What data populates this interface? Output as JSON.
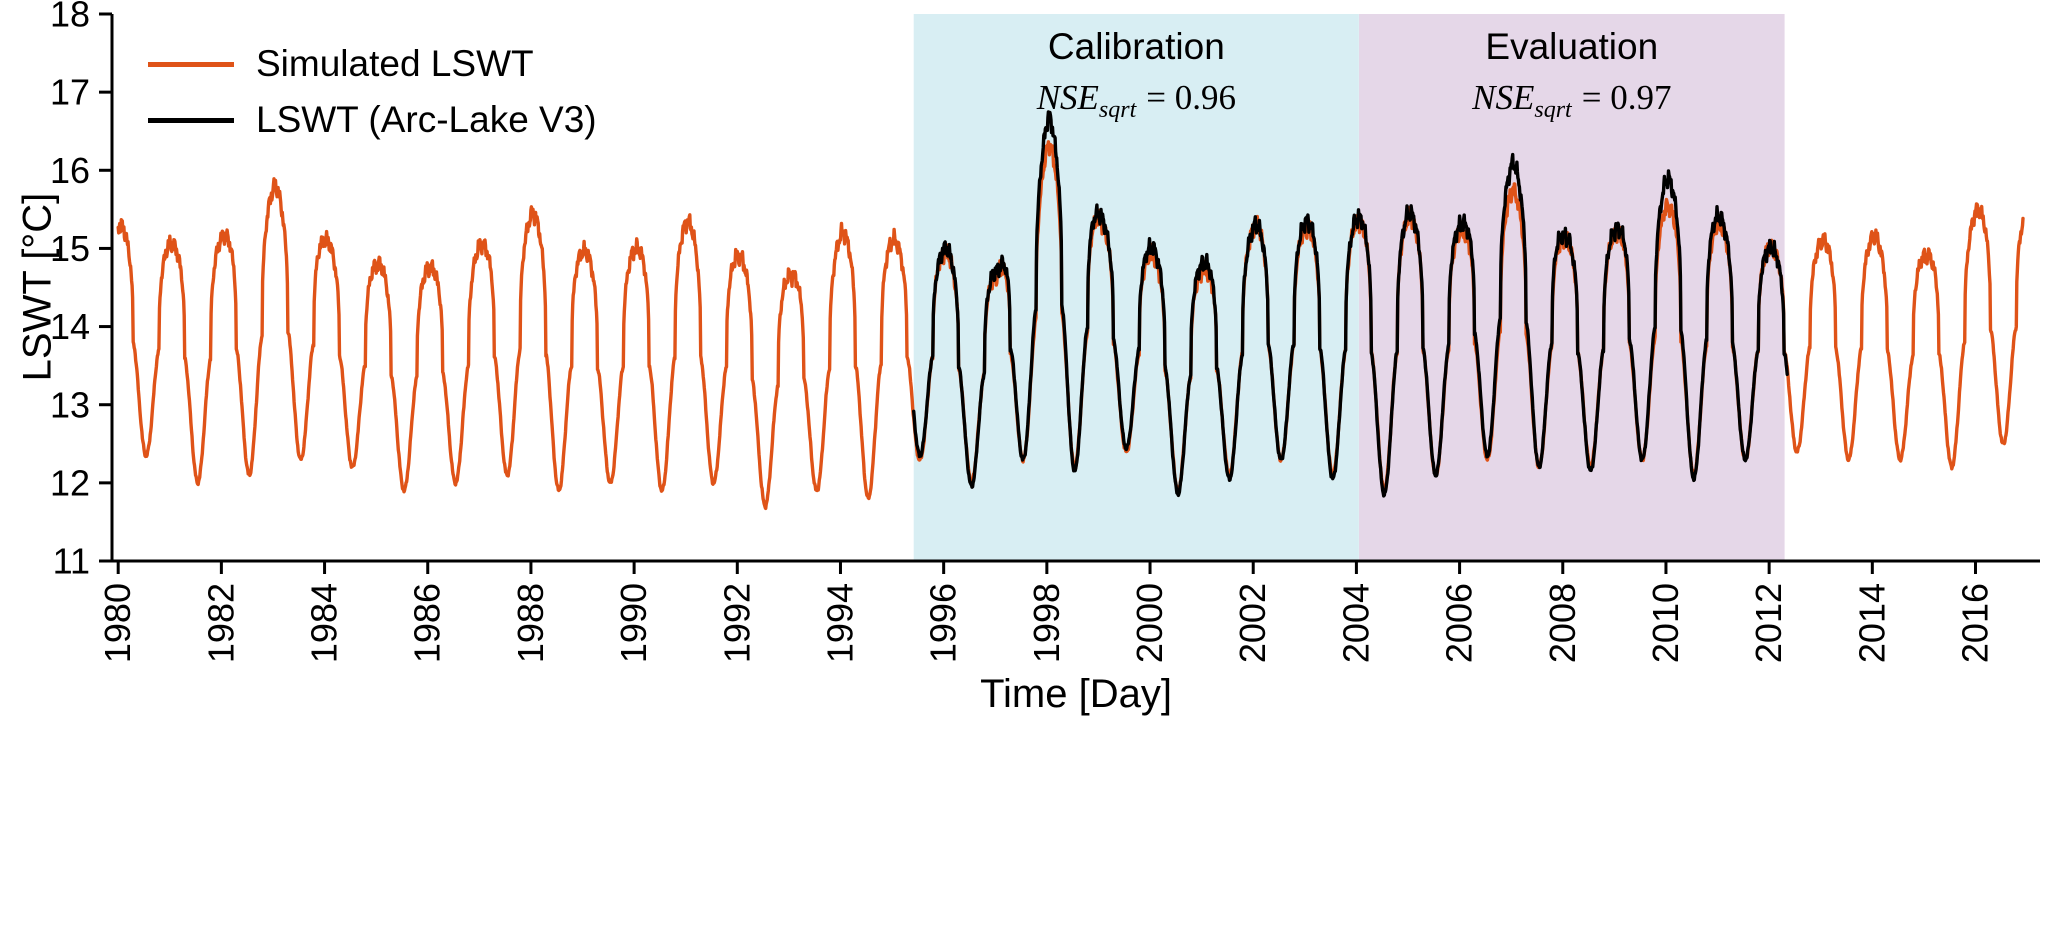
{
  "figure": {
    "legend": [
      {
        "label": "Simulated LSWT",
        "color": "#df5318"
      },
      {
        "label": "LSWT (Arc-Lake V3)",
        "color": "#000000"
      }
    ]
  },
  "chart_data": {
    "type": "line",
    "title": "",
    "xlabel": "Time [Day]",
    "ylabel": "LSWT [°C]",
    "xlim": [
      1979.88,
      2017.25
    ],
    "ylim": [
      11,
      18
    ],
    "xticks": [
      1980,
      1982,
      1984,
      1986,
      1988,
      1990,
      1992,
      1994,
      1996,
      1998,
      2000,
      2002,
      2004,
      2006,
      2008,
      2010,
      2012,
      2014,
      2016
    ],
    "yticks": [
      11,
      12,
      13,
      14,
      15,
      16,
      17,
      18
    ],
    "grid": false,
    "legend_position": "upper left",
    "peak_phase": 0.04,
    "trough_phase": 0.55,
    "regions": [
      {
        "name": "calibration",
        "label": "Calibration",
        "stat_name": "NSE",
        "stat_sub": "sqrt",
        "stat_value": "= 0.96",
        "x_start": 1995.42,
        "x_end": 2004.05,
        "color": "#d8eef3"
      },
      {
        "name": "evaluation",
        "label": "Evaluation",
        "stat_name": "NSE",
        "stat_sub": "sqrt",
        "stat_value": "= 0.97",
        "x_start": 2004.05,
        "x_end": 2012.3,
        "color": "#e5d7e8"
      }
    ],
    "series": [
      {
        "name": "Simulated LSWT",
        "color": "#df5318",
        "type": "line",
        "x_start": 1980.0,
        "x_end": 2016.92,
        "annual_peaks": [
          [
            1980,
            15.3
          ],
          [
            1981,
            15.05
          ],
          [
            1982,
            15.15
          ],
          [
            1983,
            15.8
          ],
          [
            1984,
            15.1
          ],
          [
            1985,
            14.8
          ],
          [
            1986,
            14.75
          ],
          [
            1987,
            15.05
          ],
          [
            1988,
            15.45
          ],
          [
            1989,
            14.95
          ],
          [
            1990,
            15.0
          ],
          [
            1991,
            15.35
          ],
          [
            1992,
            14.9
          ],
          [
            1993,
            14.65
          ],
          [
            1994,
            15.2
          ],
          [
            1995,
            15.1
          ],
          [
            1996,
            14.95
          ],
          [
            1997,
            14.65
          ],
          [
            1998,
            16.35
          ],
          [
            1999,
            15.35
          ],
          [
            2000,
            14.9
          ],
          [
            2001,
            14.7
          ],
          [
            2002,
            15.3
          ],
          [
            2003,
            15.25
          ],
          [
            2004,
            15.35
          ],
          [
            2005,
            15.4
          ],
          [
            2006,
            15.2
          ],
          [
            2007,
            15.75
          ],
          [
            2008,
            15.1
          ],
          [
            2009,
            15.2
          ],
          [
            2010,
            15.55
          ],
          [
            2011,
            15.3
          ],
          [
            2012,
            15.0
          ],
          [
            2013,
            15.1
          ],
          [
            2014,
            15.15
          ],
          [
            2015,
            14.9
          ],
          [
            2016,
            15.5
          ]
        ],
        "annual_troughs": [
          [
            1980,
            12.35
          ],
          [
            1981,
            12.0
          ],
          [
            1982,
            12.1
          ],
          [
            1983,
            12.3
          ],
          [
            1984,
            12.2
          ],
          [
            1985,
            11.9
          ],
          [
            1986,
            12.0
          ],
          [
            1987,
            12.1
          ],
          [
            1988,
            11.9
          ],
          [
            1989,
            12.0
          ],
          [
            1990,
            11.9
          ],
          [
            1991,
            12.0
          ],
          [
            1992,
            11.7
          ],
          [
            1993,
            11.9
          ],
          [
            1994,
            11.8
          ],
          [
            1995,
            12.3
          ],
          [
            1996,
            12.0
          ],
          [
            1997,
            12.3
          ],
          [
            1998,
            12.2
          ],
          [
            1999,
            12.4
          ],
          [
            2000,
            11.9
          ],
          [
            2001,
            12.1
          ],
          [
            2002,
            12.3
          ],
          [
            2003,
            12.1
          ],
          [
            2004,
            11.9
          ],
          [
            2005,
            12.1
          ],
          [
            2006,
            12.3
          ],
          [
            2007,
            12.2
          ],
          [
            2008,
            12.2
          ],
          [
            2009,
            12.3
          ],
          [
            2010,
            12.1
          ],
          [
            2011,
            12.3
          ],
          [
            2012,
            12.4
          ],
          [
            2013,
            12.3
          ],
          [
            2014,
            12.3
          ],
          [
            2015,
            12.2
          ],
          [
            2016,
            12.5
          ]
        ]
      },
      {
        "name": "LSWT (Arc-Lake V3)",
        "color": "#000000",
        "type": "line",
        "x_start": 1995.42,
        "x_end": 2012.35,
        "annual_peaks": [
          [
            1996,
            15.0
          ],
          [
            1997,
            14.7
          ],
          [
            1998,
            16.7
          ],
          [
            1999,
            15.4
          ],
          [
            2000,
            15.0
          ],
          [
            2001,
            14.8
          ],
          [
            2002,
            15.3
          ],
          [
            2003,
            15.35
          ],
          [
            2004,
            15.4
          ],
          [
            2005,
            15.45
          ],
          [
            2006,
            15.3
          ],
          [
            2007,
            16.1
          ],
          [
            2008,
            15.15
          ],
          [
            2009,
            15.25
          ],
          [
            2010,
            15.9
          ],
          [
            2011,
            15.4
          ],
          [
            2012,
            15.0
          ]
        ],
        "annual_troughs": [
          [
            1995,
            12.35
          ],
          [
            1996,
            11.95
          ],
          [
            1997,
            12.3
          ],
          [
            1998,
            12.15
          ],
          [
            1999,
            12.45
          ],
          [
            2000,
            11.85
          ],
          [
            2001,
            12.05
          ],
          [
            2002,
            12.3
          ],
          [
            2003,
            12.05
          ],
          [
            2004,
            11.85
          ],
          [
            2005,
            12.1
          ],
          [
            2006,
            12.35
          ],
          [
            2007,
            12.2
          ],
          [
            2008,
            12.15
          ],
          [
            2009,
            12.3
          ],
          [
            2010,
            12.05
          ],
          [
            2011,
            12.3
          ]
        ]
      }
    ]
  }
}
